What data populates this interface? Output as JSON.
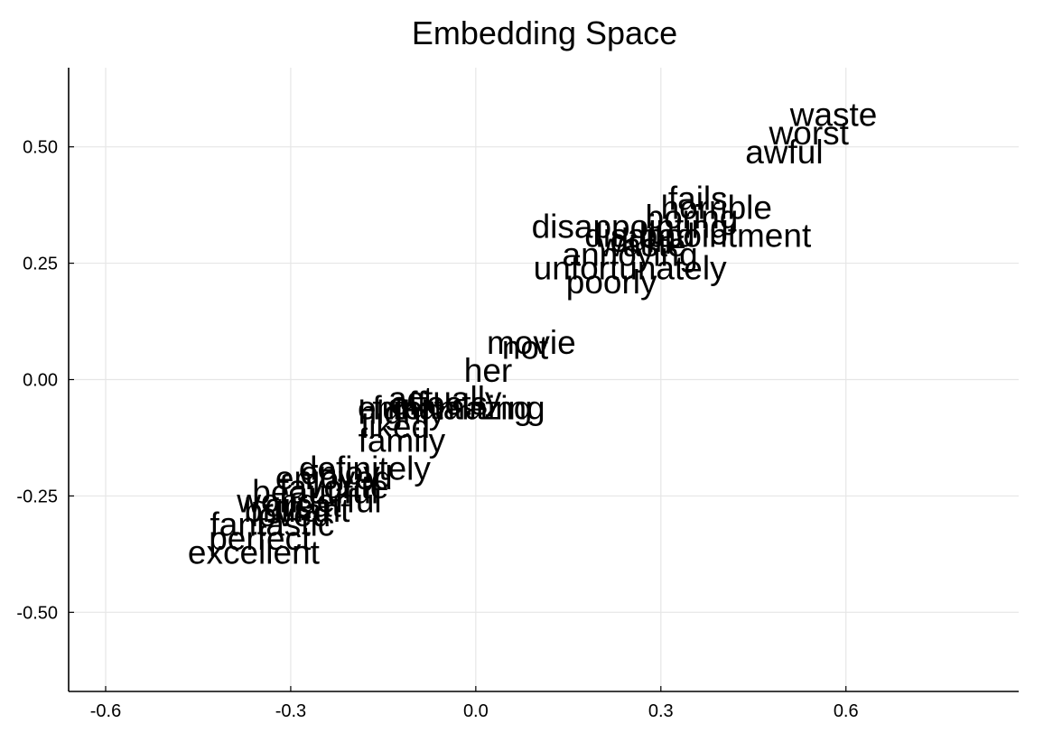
{
  "chart_data": {
    "type": "scatter",
    "title": "Embedding Space",
    "xlabel": "",
    "ylabel": "",
    "xlim": [
      -0.66,
      0.88
    ],
    "ylim": [
      -0.67,
      0.67
    ],
    "x_ticks": [
      -0.6,
      -0.3,
      0.0,
      0.3,
      0.6
    ],
    "x_tick_labels": [
      "-0.6",
      "-0.3",
      "0.0",
      "0.3",
      "0.6"
    ],
    "y_ticks": [
      -0.5,
      -0.25,
      0.0,
      0.25,
      0.5
    ],
    "y_tick_labels": [
      "-0.50",
      "-0.25",
      "0.00",
      "0.25",
      "0.50"
    ],
    "grid": true,
    "legend": "none",
    "marker": "text-label",
    "points": [
      {
        "label": "waste",
        "x": 0.58,
        "y": 0.57
      },
      {
        "label": "worst",
        "x": 0.54,
        "y": 0.53
      },
      {
        "label": "awful",
        "x": 0.5,
        "y": 0.49
      },
      {
        "label": "fails",
        "x": 0.36,
        "y": 0.39
      },
      {
        "label": "horrible",
        "x": 0.39,
        "y": 0.37
      },
      {
        "label": "boring",
        "x": 0.35,
        "y": 0.35
      },
      {
        "label": "disappointing",
        "x": 0.25,
        "y": 0.33
      },
      {
        "label": "disappointment",
        "x": 0.36,
        "y": 0.31
      },
      {
        "label": "dull",
        "x": 0.26,
        "y": 0.3
      },
      {
        "label": "waste",
        "x": 0.27,
        "y": 0.29
      },
      {
        "label": "bad",
        "x": 0.31,
        "y": 0.31
      },
      {
        "label": "annoying",
        "x": 0.25,
        "y": 0.27
      },
      {
        "label": "unfortunately",
        "x": 0.25,
        "y": 0.24
      },
      {
        "label": "poorly",
        "x": 0.22,
        "y": 0.21
      },
      {
        "label": "movie",
        "x": 0.09,
        "y": 0.08
      },
      {
        "label": "not",
        "x": 0.08,
        "y": 0.07
      },
      {
        "label": "her",
        "x": 0.02,
        "y": 0.02
      },
      {
        "label": "actually",
        "x": -0.05,
        "y": -0.04
      },
      {
        "label": "effects",
        "x": -0.06,
        "y": -0.05
      },
      {
        "label": "amazing",
        "x": 0.01,
        "y": -0.06
      },
      {
        "label": "entertaining",
        "x": -0.05,
        "y": -0.06
      },
      {
        "label": "fun",
        "x": -0.13,
        "y": -0.06
      },
      {
        "label": "highly",
        "x": -0.12,
        "y": -0.07
      },
      {
        "label": "liked",
        "x": -0.13,
        "y": -0.1
      },
      {
        "label": "family",
        "x": -0.12,
        "y": -0.13
      },
      {
        "label": "definitely",
        "x": -0.18,
        "y": -0.19
      },
      {
        "label": "enjoy",
        "x": -0.22,
        "y": -0.2
      },
      {
        "label": "enjoyed",
        "x": -0.23,
        "y": -0.21
      },
      {
        "label": "favorite",
        "x": -0.23,
        "y": -0.23
      },
      {
        "label": "beautiful",
        "x": -0.26,
        "y": -0.24
      },
      {
        "label": "wonderful",
        "x": -0.27,
        "y": -0.26
      },
      {
        "label": "great",
        "x": -0.28,
        "y": -0.27
      },
      {
        "label": "brilliant",
        "x": -0.29,
        "y": -0.28
      },
      {
        "label": "loved",
        "x": -0.3,
        "y": -0.29
      },
      {
        "label": "fantastic",
        "x": -0.33,
        "y": -0.31
      },
      {
        "label": "perfect",
        "x": -0.35,
        "y": -0.34
      },
      {
        "label": "excellent",
        "x": -0.36,
        "y": -0.37
      }
    ]
  }
}
